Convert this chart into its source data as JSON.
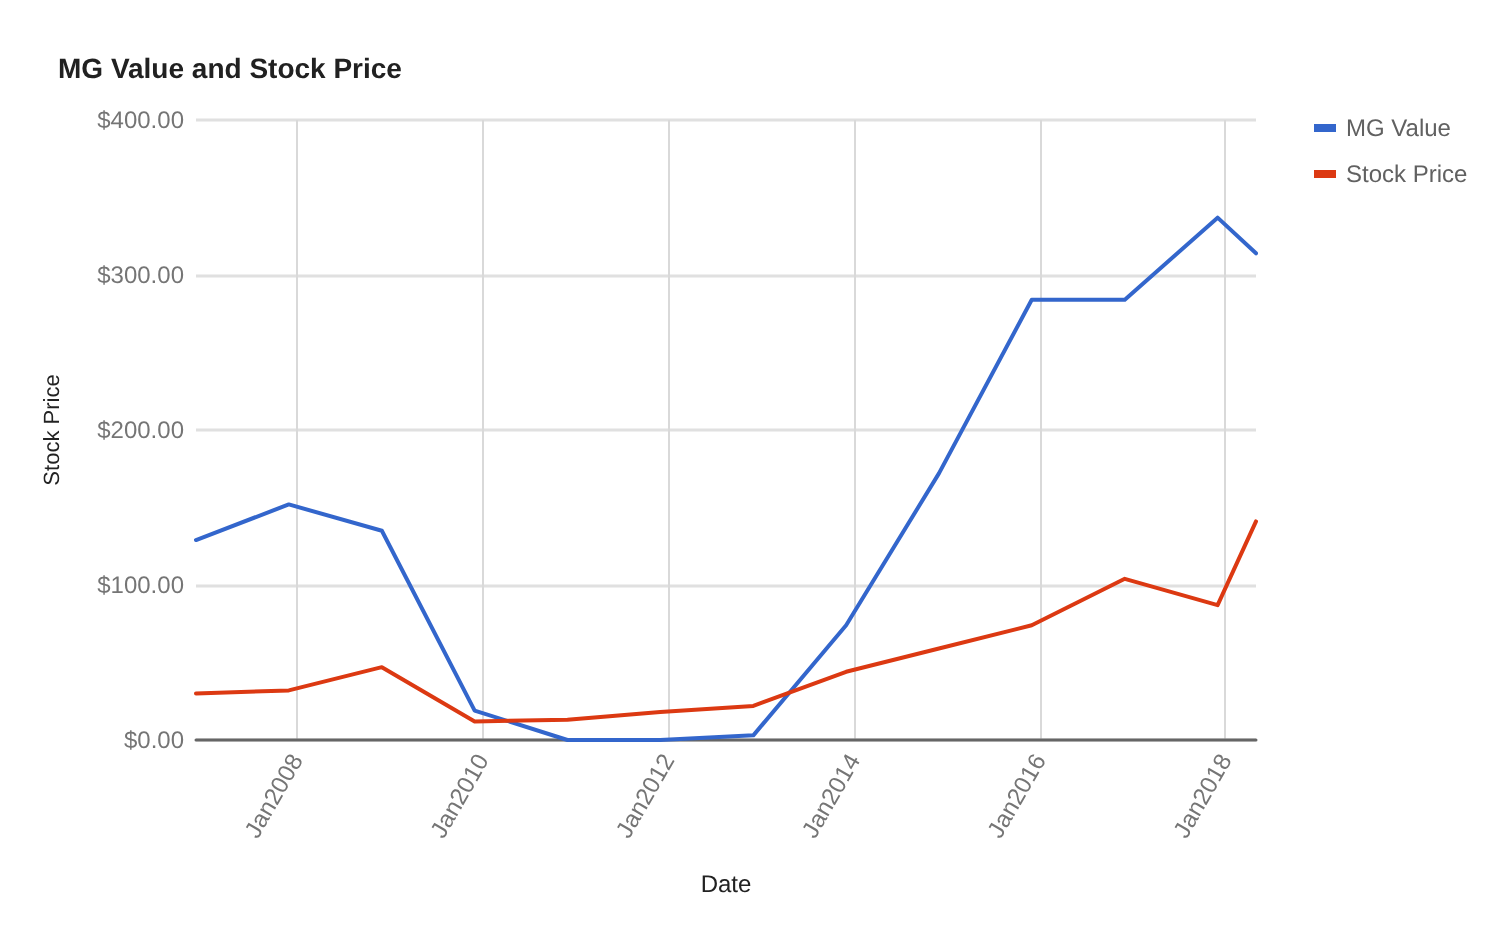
{
  "chart_data": {
    "type": "line",
    "title": "MG Value and Stock Price",
    "xlabel": "Date",
    "ylabel": "Stock Price",
    "x": [
      "2006-12",
      "2007-12",
      "2008-12",
      "2009-12",
      "2010-12",
      "2011-12",
      "2012-12",
      "2013-12",
      "2014-12",
      "2015-12",
      "2016-12",
      "2017-12",
      "2018-05"
    ],
    "series": [
      {
        "name": "MG Value",
        "color": "#3366cc",
        "values": [
          129,
          152,
          135,
          19,
          0,
          0,
          3,
          74,
          172,
          284,
          284,
          337,
          314
        ]
      },
      {
        "name": "Stock Price",
        "color": "#dc3912",
        "values": [
          30,
          32,
          47,
          12,
          13,
          18,
          22,
          44,
          59,
          74,
          104,
          87,
          141
        ]
      }
    ],
    "xlim": [
      "2006-12",
      "2018-05"
    ],
    "xticks": [
      {
        "value": "2008-01",
        "label": "Jan2008"
      },
      {
        "value": "2010-01",
        "label": "Jan2010"
      },
      {
        "value": "2012-01",
        "label": "Jan2012"
      },
      {
        "value": "2014-01",
        "label": "Jan2014"
      },
      {
        "value": "2016-01",
        "label": "Jan2016"
      },
      {
        "value": "2018-01",
        "label": "Jan2018"
      }
    ],
    "ylim": [
      0,
      400
    ],
    "yticks": [
      {
        "value": 0,
        "label": "$0.00"
      },
      {
        "value": 100,
        "label": "$100.00"
      },
      {
        "value": 200,
        "label": "$200.00"
      },
      {
        "value": 300,
        "label": "$300.00"
      },
      {
        "value": 400,
        "label": "$400.00"
      }
    ],
    "grid": true,
    "legend": "top right",
    "marker": "none",
    "line_style": "solid"
  }
}
